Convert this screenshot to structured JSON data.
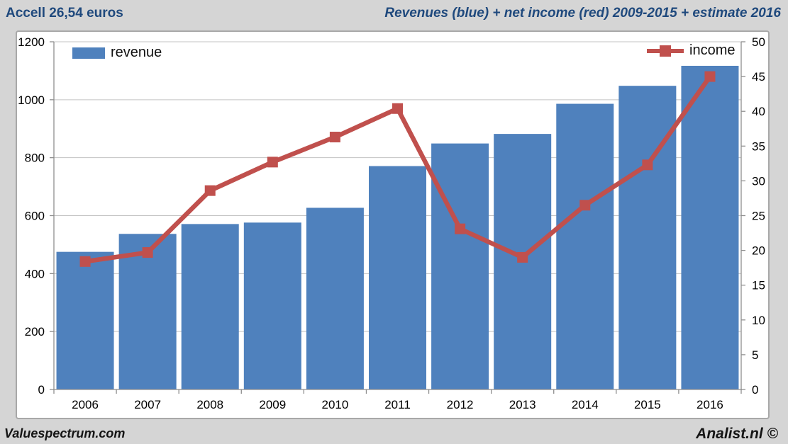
{
  "header": {
    "left_title": "Accell 26,54 euros",
    "right_title": "Revenues (blue) + net income (red) 2009-2015 + estimate 2016"
  },
  "legend": {
    "revenue_label": "revenue",
    "income_label": "income"
  },
  "footer": {
    "left": "Valuespectrum.com",
    "right": "Analist.nl ©"
  },
  "colors": {
    "revenue_bar": "#4f81bd",
    "income_line": "#c0504d",
    "title_text": "#1f497d",
    "background": "#d5d5d5",
    "plot_background": "#ffffff",
    "gridline": "#c3c3c3",
    "axis_line": "#8e8e8e",
    "axis_text": "#000000"
  },
  "chart_data": {
    "type": "bar",
    "subtype": "bar-plus-line-combo",
    "title": "Revenues (blue) + net income (red) 2009-2015 + estimate 2016",
    "categories": [
      "2006",
      "2007",
      "2008",
      "2009",
      "2010",
      "2011",
      "2012",
      "2013",
      "2014",
      "2015",
      "2016"
    ],
    "series": [
      {
        "name": "revenue",
        "type": "bar",
        "axis": "left",
        "color": "#4f81bd",
        "values": [
          475,
          537,
          571,
          576,
          627,
          771,
          849,
          882,
          986,
          1048,
          1117
        ]
      },
      {
        "name": "income",
        "type": "line",
        "axis": "right",
        "color": "#c0504d",
        "marker": "square",
        "values": [
          18.4,
          19.7,
          28.6,
          32.7,
          36.3,
          40.4,
          23.1,
          19.0,
          26.5,
          32.3,
          45.0
        ]
      }
    ],
    "left_axis": {
      "min": 0,
      "max": 1200,
      "step": 200,
      "ticks": [
        0,
        200,
        400,
        600,
        800,
        1000,
        1200
      ]
    },
    "right_axis": {
      "min": 0,
      "max": 50,
      "step": 5,
      "ticks": [
        0,
        5,
        10,
        15,
        20,
        25,
        30,
        35,
        40,
        45,
        50
      ]
    },
    "grid": "horizontal gridlines every 200 (left axis)",
    "legend_position": "revenue top-left inside plot, income top-right inside plot"
  }
}
